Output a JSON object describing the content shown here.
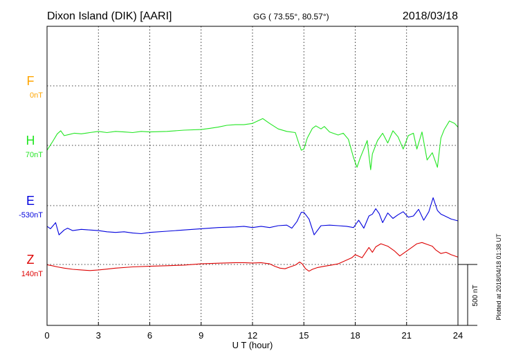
{
  "header": {
    "station": "Dixon Island (DIK)  [AARI]",
    "coords": "GG ( 73.55°,  80.57°)",
    "date": "2018/03/18"
  },
  "footer": {
    "plotted": "Plotted at 2018/04/18 01:38 UT",
    "scale_label": "500 nT"
  },
  "chart_data": {
    "type": "line",
    "xlabel": "U T (hour)",
    "ylabel": "",
    "xlim": [
      0,
      24
    ],
    "xticks": [
      "0",
      "3",
      "6",
      "9",
      "12",
      "15",
      "18",
      "21",
      "24"
    ],
    "grid": true,
    "scale_nT": 500,
    "series": [
      {
        "name": "F",
        "baseline_label": "0nT",
        "color": "#ffa500",
        "x": [],
        "y": []
      },
      {
        "name": "H",
        "baseline_label": "70nT",
        "color": "#22e622",
        "x": [
          0,
          0.3,
          0.6,
          0.8,
          1.0,
          1.3,
          1.6,
          2.0,
          2.5,
          3.0,
          3.5,
          4.0,
          4.5,
          5.0,
          5.5,
          6.0,
          7.0,
          8.0,
          9.0,
          9.5,
          10.0,
          10.5,
          11.0,
          11.5,
          12.0,
          12.3,
          12.6,
          12.8,
          13.0,
          13.5,
          14.0,
          14.5,
          14.7,
          14.85,
          15.0,
          15.2,
          15.5,
          15.7,
          16.0,
          16.2,
          16.5,
          17.0,
          17.3,
          17.6,
          17.9,
          18.1,
          18.3,
          18.5,
          18.7,
          18.9,
          19.0,
          19.3,
          19.6,
          19.9,
          20.2,
          20.5,
          20.8,
          21.1,
          21.4,
          21.6,
          21.9,
          22.2,
          22.5,
          22.8,
          23.0,
          23.2,
          23.5,
          23.8,
          24.0
        ],
        "y": [
          -40,
          25,
          95,
          120,
          80,
          90,
          100,
          95,
          105,
          115,
          105,
          115,
          110,
          105,
          115,
          110,
          115,
          125,
          130,
          140,
          150,
          165,
          170,
          170,
          180,
          200,
          220,
          200,
          180,
          135,
          115,
          105,
          20,
          -40,
          -30,
          60,
          140,
          160,
          135,
          155,
          110,
          85,
          100,
          50,
          -100,
          -180,
          -100,
          -30,
          40,
          -200,
          -70,
          40,
          100,
          20,
          120,
          70,
          -30,
          80,
          100,
          -30,
          110,
          -120,
          -60,
          -180,
          60,
          130,
          200,
          180,
          150
        ]
      },
      {
        "name": "E",
        "baseline_label": "-530nT",
        "color": "#0000dd",
        "x": [
          0,
          0.2,
          0.5,
          0.7,
          1.0,
          1.2,
          1.5,
          2.0,
          2.5,
          3.0,
          3.5,
          4.0,
          4.5,
          5.0,
          5.5,
          6.0,
          7.0,
          8.0,
          9.0,
          10.0,
          11.0,
          11.5,
          12.0,
          12.5,
          13.0,
          13.5,
          14.0,
          14.3,
          14.6,
          14.85,
          15.0,
          15.3,
          15.6,
          16.0,
          16.5,
          17.0,
          17.5,
          17.9,
          18.2,
          18.5,
          18.8,
          19.0,
          19.2,
          19.4,
          19.6,
          19.9,
          20.2,
          20.5,
          20.8,
          21.1,
          21.4,
          21.7,
          22.0,
          22.3,
          22.55,
          22.8,
          23.0,
          23.3,
          23.6,
          24.0
        ],
        "y": [
          -170,
          -190,
          -140,
          -240,
          -200,
          -185,
          -205,
          -195,
          -200,
          -205,
          -215,
          -220,
          -215,
          -225,
          -230,
          -220,
          -210,
          -200,
          -190,
          -180,
          -175,
          -170,
          -180,
          -170,
          -180,
          -165,
          -160,
          -185,
          -130,
          -55,
          -55,
          -110,
          -240,
          -165,
          -160,
          -165,
          -170,
          -180,
          -120,
          -185,
          -85,
          -70,
          -25,
          -65,
          -140,
          -60,
          -105,
          -75,
          -50,
          -95,
          -85,
          -30,
          -120,
          -50,
          65,
          -40,
          -70,
          -90,
          -110,
          -125
        ]
      },
      {
        "name": "Z",
        "baseline_label": "140nT",
        "color": "#dd0000",
        "x": [
          0,
          0.3,
          0.6,
          1.0,
          1.5,
          2.0,
          2.5,
          3.0,
          3.5,
          4.0,
          5.0,
          6.0,
          7.0,
          8.0,
          9.0,
          10.0,
          11.0,
          11.5,
          12.0,
          12.5,
          13.0,
          13.3,
          13.6,
          13.9,
          14.2,
          14.5,
          14.75,
          14.9,
          15.1,
          15.3,
          15.5,
          15.8,
          16.2,
          16.6,
          17.0,
          17.4,
          17.8,
          18.0,
          18.4,
          18.8,
          19.0,
          19.2,
          19.5,
          19.9,
          20.3,
          20.6,
          20.9,
          21.3,
          21.6,
          21.9,
          22.2,
          22.5,
          22.7,
          23.0,
          23.3,
          23.6,
          24.0
        ],
        "y": [
          -3,
          -10,
          -20,
          -30,
          -40,
          -45,
          -50,
          -45,
          -38,
          -30,
          -20,
          -15,
          -10,
          -5,
          5,
          10,
          15,
          15,
          12,
          15,
          5,
          -15,
          -30,
          -35,
          -20,
          -5,
          20,
          5,
          -35,
          -55,
          -40,
          -25,
          -15,
          -5,
          5,
          30,
          55,
          80,
          55,
          140,
          100,
          145,
          170,
          150,
          110,
          70,
          100,
          140,
          170,
          180,
          165,
          150,
          120,
          90,
          100,
          80,
          60
        ]
      }
    ]
  }
}
